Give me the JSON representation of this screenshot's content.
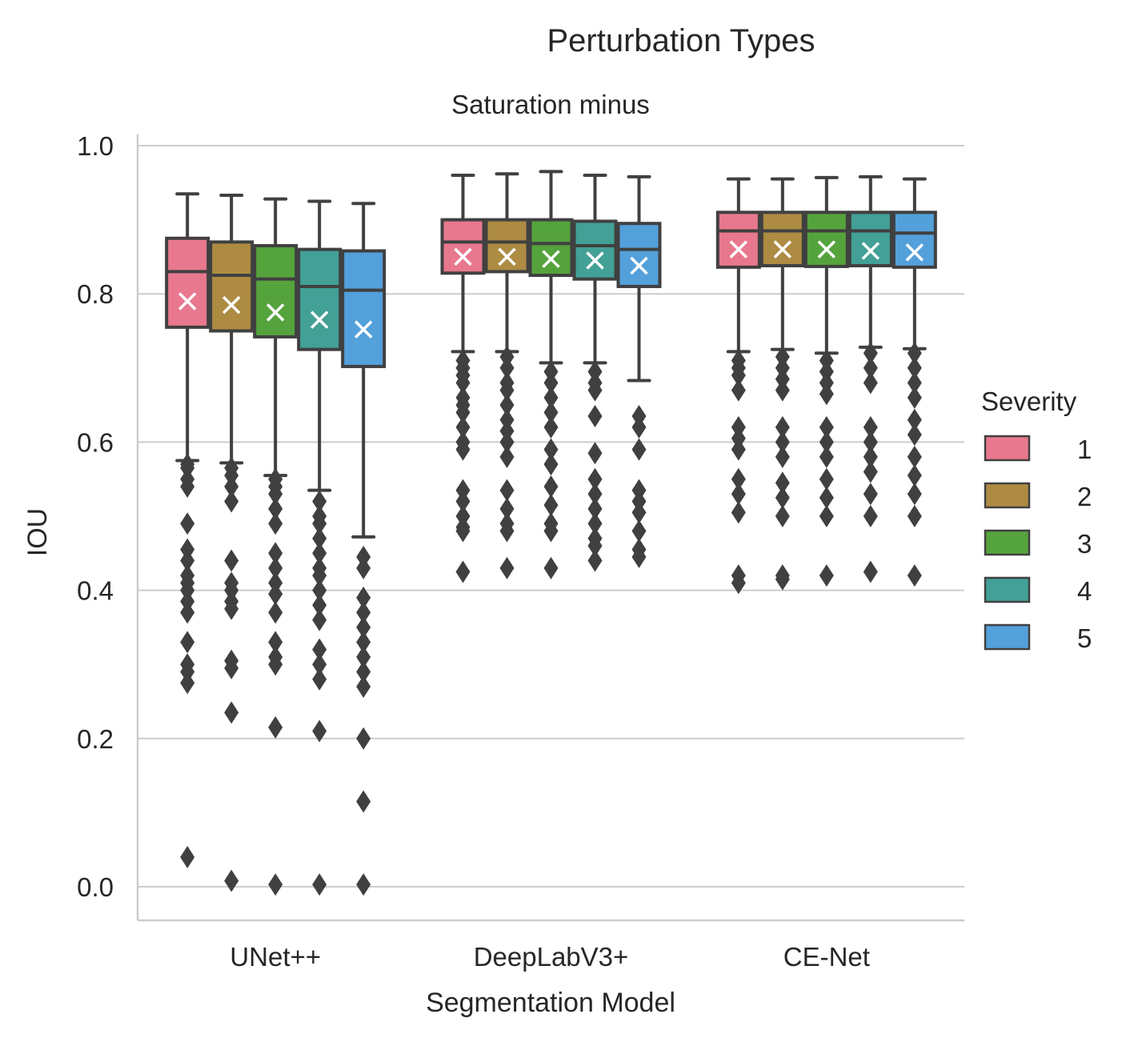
{
  "chart_data": {
    "type": "box",
    "title": "Perturbation Types",
    "subtitle": "Saturation minus",
    "xlabel": "Segmentation Model",
    "ylabel": "IOU",
    "categories": [
      "UNet++",
      "DeepLabV3+",
      "CE-Net"
    ],
    "ylim": [
      -0.045,
      1.015
    ],
    "yticks": [
      0.0,
      0.2,
      0.4,
      0.6,
      0.8,
      1.0
    ],
    "ytick_labels": [
      "0.0",
      "0.2",
      "0.4",
      "0.6",
      "0.8",
      "1.0"
    ],
    "grid": "horizontal",
    "legend": {
      "title": "Severity",
      "placement": "right",
      "entries": [
        "1",
        "2",
        "3",
        "4",
        "5"
      ]
    },
    "colors": {
      "1": "#e8788e",
      "2": "#ad8b42",
      "3": "#55a33d",
      "4": "#42a096",
      "5": "#53a0db",
      "box_edge": "#404040",
      "mean_marker": "#ffffff",
      "grid": "#cccccc"
    },
    "mean_marker": "x",
    "series": [
      {
        "name": "1",
        "boxes": [
          {
            "category": "UNet++",
            "whislo": 0.575,
            "q1": 0.755,
            "median": 0.83,
            "q3": 0.875,
            "whishi": 0.935,
            "mean": 0.79,
            "fliers": [
              0.57,
              0.565,
              0.55,
              0.54,
              0.49,
              0.455,
              0.44,
              0.42,
              0.41,
              0.4,
              0.385,
              0.37,
              0.33,
              0.3,
              0.29,
              0.275,
              0.04
            ]
          },
          {
            "category": "DeepLabV3+",
            "whislo": 0.722,
            "q1": 0.828,
            "median": 0.87,
            "q3": 0.9,
            "whishi": 0.96,
            "mean": 0.85,
            "fliers": [
              0.71,
              0.7,
              0.69,
              0.68,
              0.66,
              0.65,
              0.64,
              0.62,
              0.6,
              0.59,
              0.535,
              0.52,
              0.5,
              0.485,
              0.48,
              0.425
            ]
          },
          {
            "category": "CE-Net",
            "whislo": 0.722,
            "q1": 0.836,
            "median": 0.885,
            "q3": 0.91,
            "whishi": 0.955,
            "mean": 0.86,
            "fliers": [
              0.71,
              0.7,
              0.69,
              0.67,
              0.62,
              0.605,
              0.59,
              0.55,
              0.53,
              0.505,
              0.42,
              0.41
            ]
          }
        ]
      },
      {
        "name": "2",
        "boxes": [
          {
            "category": "UNet++",
            "whislo": 0.572,
            "q1": 0.75,
            "median": 0.825,
            "q3": 0.87,
            "whishi": 0.933,
            "mean": 0.785,
            "fliers": [
              0.565,
              0.555,
              0.54,
              0.52,
              0.44,
              0.41,
              0.4,
              0.385,
              0.375,
              0.305,
              0.295,
              0.235,
              0.008
            ]
          },
          {
            "category": "DeepLabV3+",
            "whislo": 0.722,
            "q1": 0.83,
            "median": 0.87,
            "q3": 0.9,
            "whishi": 0.962,
            "mean": 0.85,
            "fliers": [
              0.715,
              0.7,
              0.68,
              0.67,
              0.65,
              0.63,
              0.615,
              0.6,
              0.58,
              0.535,
              0.51,
              0.49,
              0.48,
              0.43
            ]
          },
          {
            "category": "CE-Net",
            "whislo": 0.725,
            "q1": 0.838,
            "median": 0.885,
            "q3": 0.91,
            "whishi": 0.955,
            "mean": 0.86,
            "fliers": [
              0.715,
              0.7,
              0.685,
              0.67,
              0.62,
              0.6,
              0.58,
              0.545,
              0.525,
              0.5,
              0.42,
              0.415
            ]
          }
        ]
      },
      {
        "name": "3",
        "boxes": [
          {
            "category": "UNet++",
            "whislo": 0.555,
            "q1": 0.742,
            "median": 0.82,
            "q3": 0.865,
            "whishi": 0.928,
            "mean": 0.775,
            "fliers": [
              0.55,
              0.54,
              0.53,
              0.51,
              0.49,
              0.45,
              0.43,
              0.41,
              0.395,
              0.37,
              0.33,
              0.31,
              0.3,
              0.215,
              0.003
            ]
          },
          {
            "category": "DeepLabV3+",
            "whislo": 0.707,
            "q1": 0.825,
            "median": 0.868,
            "q3": 0.9,
            "whishi": 0.965,
            "mean": 0.847,
            "fliers": [
              0.695,
              0.68,
              0.66,
              0.64,
              0.62,
              0.59,
              0.57,
              0.54,
              0.515,
              0.49,
              0.48,
              0.43
            ]
          },
          {
            "category": "CE-Net",
            "whislo": 0.72,
            "q1": 0.837,
            "median": 0.885,
            "q3": 0.91,
            "whishi": 0.957,
            "mean": 0.86,
            "fliers": [
              0.71,
              0.695,
              0.68,
              0.665,
              0.62,
              0.6,
              0.58,
              0.55,
              0.525,
              0.5,
              0.42
            ]
          }
        ]
      },
      {
        "name": "4",
        "boxes": [
          {
            "category": "UNet++",
            "whislo": 0.535,
            "q1": 0.725,
            "median": 0.81,
            "q3": 0.86,
            "whishi": 0.925,
            "mean": 0.765,
            "fliers": [
              0.52,
              0.5,
              0.49,
              0.47,
              0.45,
              0.43,
              0.42,
              0.4,
              0.38,
              0.36,
              0.32,
              0.3,
              0.28,
              0.21,
              0.003
            ]
          },
          {
            "category": "DeepLabV3+",
            "whislo": 0.707,
            "q1": 0.82,
            "median": 0.865,
            "q3": 0.898,
            "whishi": 0.96,
            "mean": 0.845,
            "fliers": [
              0.695,
              0.68,
              0.67,
              0.635,
              0.585,
              0.55,
              0.53,
              0.51,
              0.49,
              0.47,
              0.46,
              0.44
            ]
          },
          {
            "category": "CE-Net",
            "whislo": 0.728,
            "q1": 0.838,
            "median": 0.885,
            "q3": 0.91,
            "whishi": 0.958,
            "mean": 0.858,
            "fliers": [
              0.72,
              0.7,
              0.68,
              0.62,
              0.6,
              0.58,
              0.56,
              0.53,
              0.5,
              0.425
            ]
          }
        ]
      },
      {
        "name": "5",
        "boxes": [
          {
            "category": "UNet++",
            "whislo": 0.472,
            "q1": 0.702,
            "median": 0.805,
            "q3": 0.858,
            "whishi": 0.922,
            "mean": 0.752,
            "fliers": [
              0.445,
              0.43,
              0.39,
              0.37,
              0.35,
              0.33,
              0.31,
              0.29,
              0.27,
              0.2,
              0.115,
              0.003
            ]
          },
          {
            "category": "DeepLabV3+",
            "whislo": 0.683,
            "q1": 0.81,
            "median": 0.86,
            "q3": 0.895,
            "whishi": 0.958,
            "mean": 0.838,
            "fliers": [
              0.635,
              0.62,
              0.59,
              0.535,
              0.52,
              0.505,
              0.48,
              0.455,
              0.445
            ]
          },
          {
            "category": "CE-Net",
            "whislo": 0.726,
            "q1": 0.836,
            "median": 0.882,
            "q3": 0.91,
            "whishi": 0.955,
            "mean": 0.856,
            "fliers": [
              0.72,
              0.7,
              0.68,
              0.66,
              0.63,
              0.61,
              0.58,
              0.555,
              0.53,
              0.5,
              0.42
            ]
          }
        ]
      }
    ]
  }
}
